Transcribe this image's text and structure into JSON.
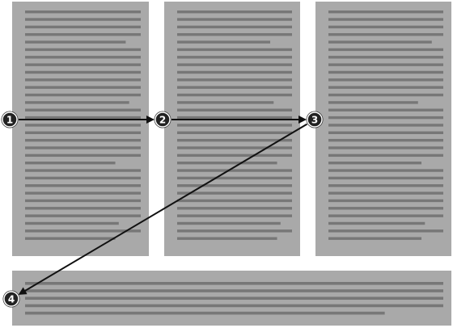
{
  "diagram": {
    "description_type": "reading-order-flow",
    "colors": {
      "page_background": "#ffffff",
      "column_fill": "#a9a9a9",
      "text_line": "#777777",
      "arrow": "#111111",
      "marker_fill": "#222222",
      "marker_ring": "#ffffff",
      "marker_outer": "#333333"
    },
    "columns": [
      {
        "id": "column-1",
        "line_count": 31
      },
      {
        "id": "column-2",
        "line_count": 31
      },
      {
        "id": "column-3",
        "line_count": 31
      },
      {
        "id": "column-wide",
        "line_count": 5
      }
    ],
    "markers": [
      {
        "id": "marker-1",
        "label": "1"
      },
      {
        "id": "marker-2",
        "label": "2"
      },
      {
        "id": "marker-3",
        "label": "3"
      },
      {
        "id": "marker-4",
        "label": "4"
      }
    ],
    "flow": [
      {
        "from": "marker-1",
        "to": "marker-2"
      },
      {
        "from": "marker-2",
        "to": "marker-3"
      },
      {
        "from": "marker-3",
        "to": "marker-4"
      }
    ]
  }
}
